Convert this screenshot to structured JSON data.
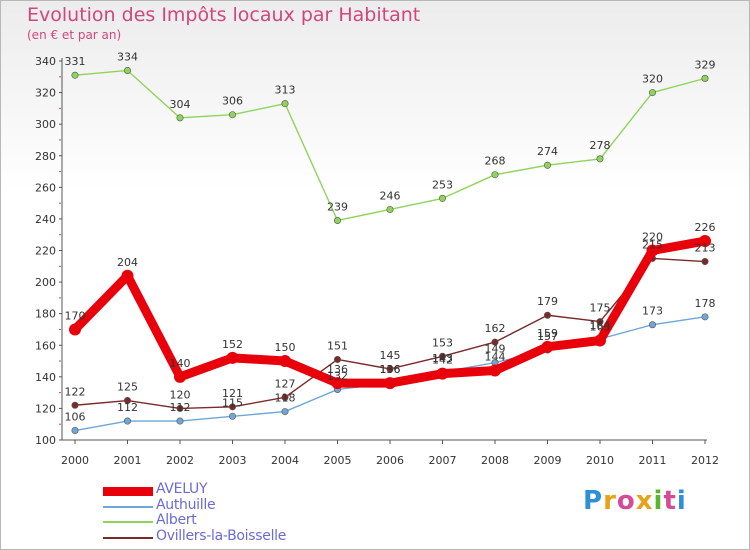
{
  "chart_data": {
    "type": "line",
    "title": "Evolution des Impôts locaux par Habitant",
    "subtitle": "(en € et par an)",
    "xlabel": "",
    "ylabel": "",
    "x": [
      "2000",
      "2001",
      "2002",
      "2003",
      "2004",
      "2005",
      "2006",
      "2007",
      "2008",
      "2009",
      "2010",
      "2011",
      "2012"
    ],
    "ylim": [
      100,
      340
    ],
    "yticks": [
      100,
      120,
      140,
      160,
      180,
      200,
      220,
      240,
      260,
      280,
      300,
      320,
      340
    ],
    "legend_position": "bottom-left",
    "series": [
      {
        "name": "AVELUY",
        "color": "#e8000b",
        "values": [
          170,
          204,
          140,
          152,
          150,
          136,
          136,
          142,
          144,
          159,
          163,
          220,
          226
        ],
        "labels": [
          "170",
          "204",
          "140",
          "152",
          "150",
          "136",
          "136",
          "142",
          "144",
          "159",
          "163",
          "220",
          "226"
        ]
      },
      {
        "name": "Authuille",
        "color": "#6fa6d6",
        "values": [
          106,
          112,
          112,
          115,
          118,
          132,
          136,
          143,
          149,
          157,
          164,
          173,
          178
        ],
        "labels": [
          "106",
          "112",
          "112",
          "115",
          "118",
          "132",
          "136",
          "143",
          "149",
          "157",
          "164",
          "173",
          "178"
        ]
      },
      {
        "name": "Albert",
        "color": "#8fd45a",
        "values": [
          331,
          334,
          304,
          306,
          313,
          239,
          246,
          253,
          268,
          274,
          278,
          320,
          329
        ],
        "labels": [
          "331",
          "334",
          "304",
          "306",
          "313",
          "239",
          "246",
          "253",
          "268",
          "274",
          "278",
          "320",
          "329"
        ]
      },
      {
        "name": "Ovillers-la-Boisselle",
        "color": "#7a2a2a",
        "values": [
          122,
          125,
          120,
          121,
          127,
          151,
          145,
          153,
          162,
          179,
          175,
          215,
          213
        ],
        "labels": [
          "122",
          "125",
          "120",
          "121",
          "127",
          "151",
          "145",
          "153",
          "162",
          "179",
          "175",
          "215",
          "213"
        ]
      }
    ]
  },
  "brand": {
    "letters": [
      "P",
      "r",
      "o",
      "x",
      "i",
      "t",
      "i"
    ],
    "colors": [
      "#2e8fd6",
      "#e8a21a",
      "#d64a9a",
      "#e8a21a",
      "#5ab52e",
      "#d64a9a",
      "#2e8fd6"
    ]
  }
}
